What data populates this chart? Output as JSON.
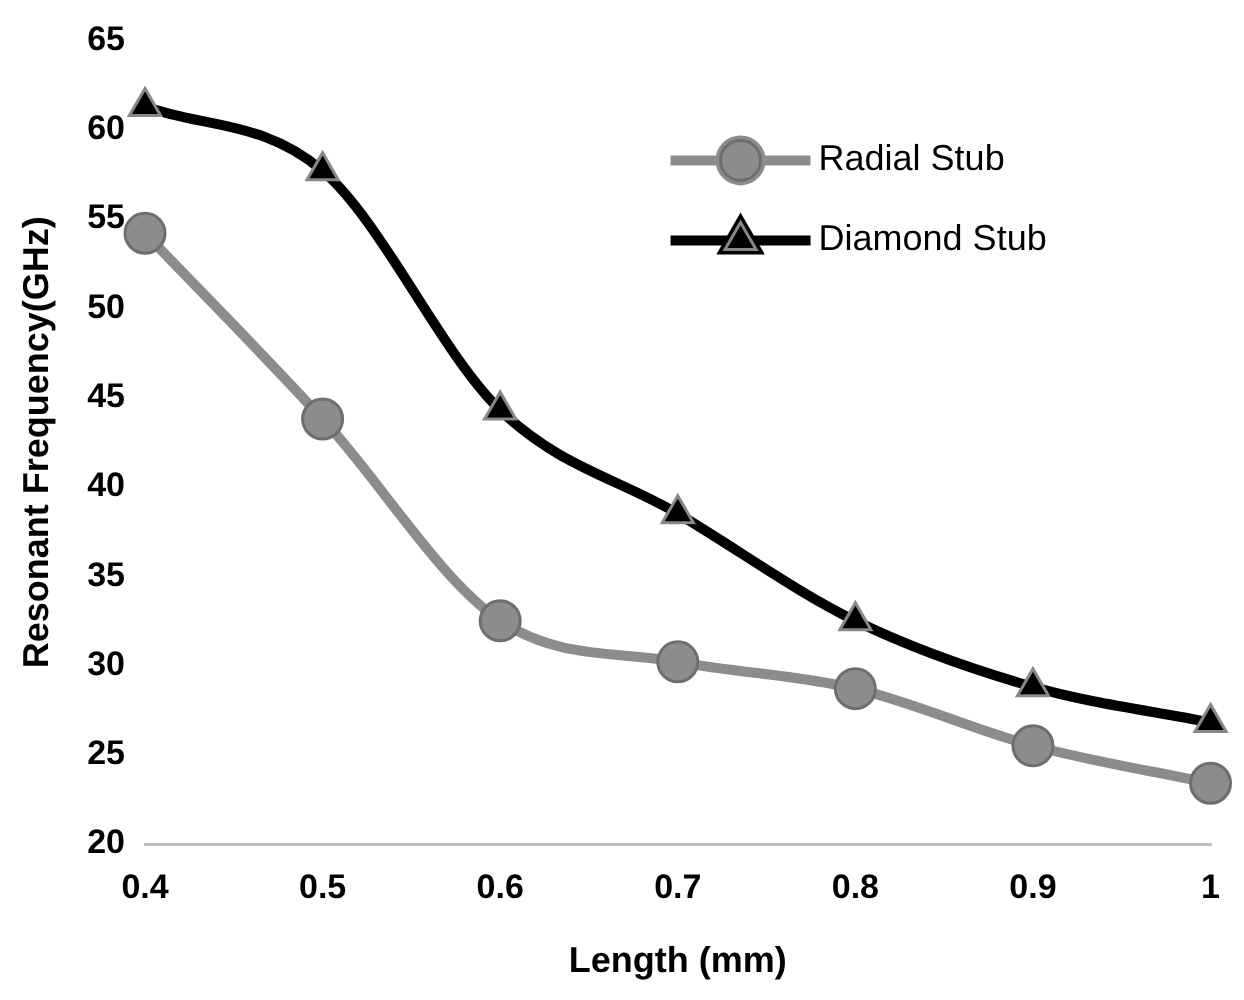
{
  "chart_data": {
    "type": "line",
    "xlabel": "Length (mm)",
    "ylabel": "Resonant Frequency(GHz)",
    "categories": [
      "0.4",
      "0.5",
      "0.6",
      "0.7",
      "0.8",
      "0.9",
      "1"
    ],
    "series": [
      {
        "name": "Radial Stub",
        "color": "#8c8c8c",
        "marker": "circle",
        "values": [
          54.2,
          43.8,
          32.5,
          30.2,
          28.7,
          25.5,
          23.4
        ]
      },
      {
        "name": "Diamond Stub",
        "color": "#000000",
        "marker": "triangle",
        "values": [
          61.3,
          57.7,
          44.3,
          38.5,
          32.5,
          28.8,
          26.8
        ]
      }
    ],
    "ylim": [
      20,
      65
    ],
    "yticks": [
      20,
      25,
      30,
      35,
      40,
      45,
      50,
      55,
      60,
      65
    ],
    "grid": false,
    "legend": "top right"
  }
}
